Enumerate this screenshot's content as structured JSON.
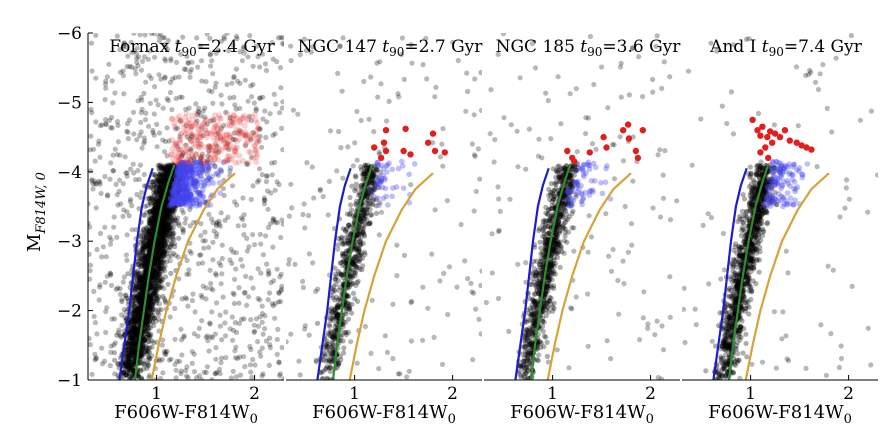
{
  "figure": {
    "ylabel_main": "M",
    "ylabel_sub": "F814W, 0",
    "xlabel_main": "F606W-F814W",
    "xlabel_sub": "0"
  },
  "chart_data": {
    "type": "scatter",
    "ylabel": "M_F814W,0",
    "xlabel": "F606W-F814W_0",
    "ylim": [
      -1,
      -6
    ],
    "y_inverted": true,
    "yticks": [
      -1,
      -2,
      -3,
      -4,
      -5,
      -6
    ],
    "xticks": [
      1,
      2
    ],
    "panels": [
      {
        "name": "Fornax",
        "t90_label": "t",
        "t90_sub": "90",
        "t90_value": "=2.4 Gyr",
        "t90_gyr": 2.4,
        "xlim": [
          0.3,
          2.3
        ],
        "agb_red_points": [
          [
            1.25,
            -4.55
          ],
          [
            1.35,
            -4.45
          ],
          [
            1.45,
            -4.5
          ],
          [
            1.55,
            -4.35
          ],
          [
            1.4,
            -4.25
          ],
          [
            1.3,
            -4.3
          ],
          [
            1.5,
            -4.6
          ],
          [
            1.6,
            -4.4
          ],
          [
            1.7,
            -4.35
          ],
          [
            1.35,
            -4.65
          ],
          [
            1.45,
            -4.2
          ],
          [
            1.55,
            -4.55
          ],
          [
            1.65,
            -4.5
          ],
          [
            1.2,
            -4.4
          ],
          [
            1.8,
            -4.3
          ],
          [
            1.25,
            -4.2
          ],
          [
            1.5,
            -4.75
          ],
          [
            1.4,
            -4.7
          ],
          [
            1.6,
            -4.25
          ],
          [
            1.3,
            -4.55
          ],
          [
            1.75,
            -4.5
          ],
          [
            1.15,
            -4.25
          ],
          [
            1.45,
            -4.4
          ],
          [
            1.35,
            -4.15
          ],
          [
            1.55,
            -4.2
          ]
        ]
      },
      {
        "name": "NGC 147",
        "t90_label": "t",
        "t90_sub": "90",
        "t90_value": "=2.7 Gyr",
        "t90_gyr": 2.7,
        "xlim": [
          0.3,
          2.3
        ],
        "agb_red_points": [
          [
            1.2,
            -4.35
          ],
          [
            1.27,
            -4.2
          ],
          [
            1.32,
            -4.3
          ],
          [
            1.3,
            -4.42
          ],
          [
            1.32,
            -4.6
          ],
          [
            1.5,
            -4.3
          ],
          [
            1.57,
            -4.25
          ],
          [
            1.52,
            -4.62
          ],
          [
            1.75,
            -4.42
          ],
          [
            1.8,
            -4.55
          ],
          [
            1.82,
            -4.3
          ],
          [
            1.92,
            -4.28
          ]
        ]
      },
      {
        "name": "NGC 185",
        "t90_label": "t",
        "t90_sub": "90",
        "t90_value": "=3.6 Gyr",
        "t90_gyr": 3.6,
        "xlim": [
          0.3,
          2.3
        ],
        "agb_red_points": [
          [
            1.15,
            -4.3
          ],
          [
            1.2,
            -4.2
          ],
          [
            1.22,
            -4.15
          ],
          [
            1.38,
            -4.28
          ],
          [
            1.52,
            -4.5
          ],
          [
            1.55,
            -4.35
          ],
          [
            1.72,
            -4.6
          ],
          [
            1.77,
            -4.68
          ],
          [
            1.78,
            -4.48
          ],
          [
            1.85,
            -4.3
          ],
          [
            1.87,
            -4.2
          ],
          [
            1.92,
            -4.6
          ]
        ]
      },
      {
        "name": "And I",
        "t90_label": "t",
        "t90_sub": "90",
        "t90_value": "=7.4 Gyr",
        "t90_gyr": 7.4,
        "xlim": [
          0.3,
          2.3
        ],
        "agb_red_points": [
          [
            1.02,
            -4.75
          ],
          [
            1.07,
            -4.6
          ],
          [
            1.1,
            -4.52
          ],
          [
            1.12,
            -4.65
          ],
          [
            1.17,
            -4.5
          ],
          [
            1.2,
            -4.58
          ],
          [
            1.22,
            -4.42
          ],
          [
            1.25,
            -4.55
          ],
          [
            1.3,
            -4.5
          ],
          [
            1.35,
            -4.6
          ],
          [
            1.4,
            -4.45
          ],
          [
            1.47,
            -4.42
          ],
          [
            1.52,
            -4.38
          ],
          [
            1.57,
            -4.35
          ],
          [
            1.62,
            -4.32
          ],
          [
            1.15,
            -4.35
          ],
          [
            1.1,
            -4.28
          ],
          [
            1.18,
            -4.2
          ]
        ]
      }
    ],
    "isochrones": [
      {
        "color": "#1c1cc8",
        "points": [
          [
            0.62,
            -1.0
          ],
          [
            0.67,
            -1.5
          ],
          [
            0.72,
            -2.0
          ],
          [
            0.76,
            -2.5
          ],
          [
            0.8,
            -3.0
          ],
          [
            0.85,
            -3.5
          ],
          [
            0.9,
            -3.8
          ],
          [
            0.96,
            -4.05
          ]
        ]
      },
      {
        "color": "#2e8b2e",
        "points": [
          [
            0.78,
            -1.0
          ],
          [
            0.82,
            -1.5
          ],
          [
            0.87,
            -2.0
          ],
          [
            0.92,
            -2.5
          ],
          [
            0.98,
            -3.0
          ],
          [
            1.05,
            -3.5
          ],
          [
            1.12,
            -3.85
          ],
          [
            1.18,
            -4.1
          ]
        ]
      },
      {
        "color": "#d4a33a",
        "points": [
          [
            0.95,
            -1.0
          ],
          [
            1.02,
            -1.5
          ],
          [
            1.1,
            -2.0
          ],
          [
            1.2,
            -2.5
          ],
          [
            1.32,
            -3.0
          ],
          [
            1.48,
            -3.45
          ],
          [
            1.62,
            -3.75
          ],
          [
            1.8,
            -3.98
          ]
        ]
      }
    ],
    "colors": {
      "rgb_points": "#000000",
      "agb_blue": "#4646f0",
      "agb_red": "#e02020"
    }
  }
}
